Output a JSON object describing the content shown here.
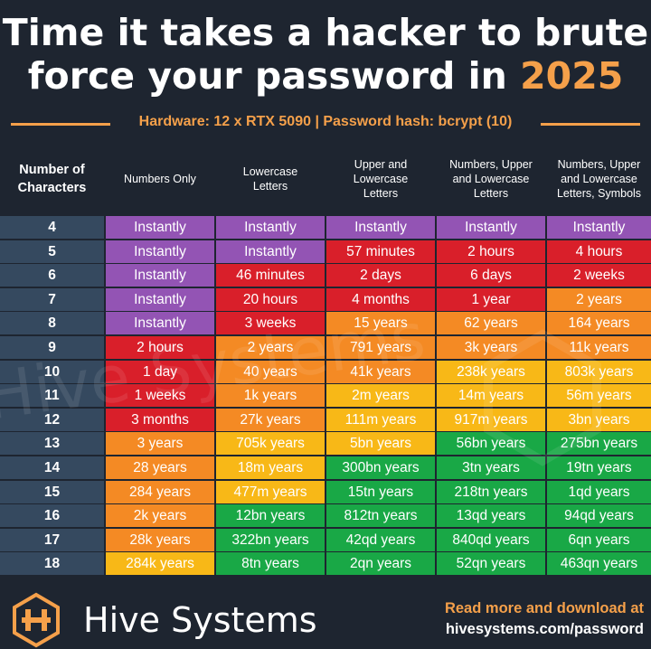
{
  "title": {
    "line1": "Time it takes a hacker to brute",
    "line2_prefix": "force your password in ",
    "year": "2025"
  },
  "subtitle": "Hardware: 12 x RTX 5090 | Password hash: bcrypt (10)",
  "headers": [
    "Number of\nCharacters",
    "Numbers Only",
    "Lowercase\nLetters",
    "Upper and\nLowercase\nLetters",
    "Numbers, Upper\nand Lowercase\nLetters",
    "Numbers, Upper\nand Lowercase\nLetters, Symbols"
  ],
  "colors": {
    "purple": "#9354b4",
    "red": "#d91f2a",
    "orange": "#f48a24",
    "yellow": "#f8b817",
    "green": "#19a846",
    "num_col": "#35495f",
    "accent": "#f5a04a"
  },
  "chart_data": {
    "type": "table",
    "title": "Time it takes a hacker to brute force your password in 2025",
    "columns": [
      "Number of Characters",
      "Numbers Only",
      "Lowercase Letters",
      "Upper and Lowercase Letters",
      "Numbers, Upper and Lowercase Letters",
      "Numbers, Upper and Lowercase Letters, Symbols"
    ],
    "rows": [
      {
        "n": "4",
        "cells": [
          [
            "Instantly",
            "purple"
          ],
          [
            "Instantly",
            "purple"
          ],
          [
            "Instantly",
            "purple"
          ],
          [
            "Instantly",
            "purple"
          ],
          [
            "Instantly",
            "purple"
          ]
        ]
      },
      {
        "n": "5",
        "cells": [
          [
            "Instantly",
            "purple"
          ],
          [
            "Instantly",
            "purple"
          ],
          [
            "57 minutes",
            "red"
          ],
          [
            "2 hours",
            "red"
          ],
          [
            "4 hours",
            "red"
          ]
        ]
      },
      {
        "n": "6",
        "cells": [
          [
            "Instantly",
            "purple"
          ],
          [
            "46 minutes",
            "red"
          ],
          [
            "2 days",
            "red"
          ],
          [
            "6 days",
            "red"
          ],
          [
            "2 weeks",
            "red"
          ]
        ]
      },
      {
        "n": "7",
        "cells": [
          [
            "Instantly",
            "purple"
          ],
          [
            "20 hours",
            "red"
          ],
          [
            "4 months",
            "red"
          ],
          [
            "1 year",
            "red"
          ],
          [
            "2 years",
            "orange"
          ]
        ]
      },
      {
        "n": "8",
        "cells": [
          [
            "Instantly",
            "purple"
          ],
          [
            "3 weeks",
            "red"
          ],
          [
            "15 years",
            "orange"
          ],
          [
            "62 years",
            "orange"
          ],
          [
            "164 years",
            "orange"
          ]
        ]
      },
      {
        "n": "9",
        "cells": [
          [
            "2 hours",
            "red"
          ],
          [
            "2 years",
            "orange"
          ],
          [
            "791 years",
            "orange"
          ],
          [
            "3k years",
            "orange"
          ],
          [
            "11k years",
            "orange"
          ]
        ]
      },
      {
        "n": "10",
        "cells": [
          [
            "1 day",
            "red"
          ],
          [
            "40 years",
            "orange"
          ],
          [
            "41k years",
            "orange"
          ],
          [
            "238k years",
            "yellow"
          ],
          [
            "803k years",
            "yellow"
          ]
        ]
      },
      {
        "n": "11",
        "cells": [
          [
            "1 weeks",
            "red"
          ],
          [
            "1k years",
            "orange"
          ],
          [
            "2m years",
            "yellow"
          ],
          [
            "14m years",
            "yellow"
          ],
          [
            "56m years",
            "yellow"
          ]
        ]
      },
      {
        "n": "12",
        "cells": [
          [
            "3 months",
            "red"
          ],
          [
            "27k years",
            "orange"
          ],
          [
            "111m years",
            "yellow"
          ],
          [
            "917m years",
            "yellow"
          ],
          [
            "3bn years",
            "yellow"
          ]
        ]
      },
      {
        "n": "13",
        "cells": [
          [
            "3 years",
            "orange"
          ],
          [
            "705k years",
            "yellow"
          ],
          [
            "5bn years",
            "yellow"
          ],
          [
            "56bn years",
            "green"
          ],
          [
            "275bn years",
            "green"
          ]
        ]
      },
      {
        "n": "14",
        "cells": [
          [
            "28 years",
            "orange"
          ],
          [
            "18m years",
            "yellow"
          ],
          [
            "300bn years",
            "green"
          ],
          [
            "3tn years",
            "green"
          ],
          [
            "19tn years",
            "green"
          ]
        ]
      },
      {
        "n": "15",
        "cells": [
          [
            "284 years",
            "orange"
          ],
          [
            "477m years",
            "yellow"
          ],
          [
            "15tn years",
            "green"
          ],
          [
            "218tn years",
            "green"
          ],
          [
            "1qd years",
            "green"
          ]
        ]
      },
      {
        "n": "16",
        "cells": [
          [
            "2k years",
            "orange"
          ],
          [
            "12bn years",
            "green"
          ],
          [
            "812tn years",
            "green"
          ],
          [
            "13qd years",
            "green"
          ],
          [
            "94qd years",
            "green"
          ]
        ]
      },
      {
        "n": "17",
        "cells": [
          [
            "28k years",
            "orange"
          ],
          [
            "322bn years",
            "green"
          ],
          [
            "42qd years",
            "green"
          ],
          [
            "840qd years",
            "green"
          ],
          [
            "6qn years",
            "green"
          ]
        ]
      },
      {
        "n": "18",
        "cells": [
          [
            "284k years",
            "yellow"
          ],
          [
            "8tn years",
            "green"
          ],
          [
            "2qn years",
            "green"
          ],
          [
            "52qn years",
            "green"
          ],
          [
            "463qn years",
            "green"
          ]
        ]
      }
    ]
  },
  "footer": {
    "brand": "Hive Systems",
    "read_more": "Read more and download at",
    "url": "hivesystems.com/password",
    "logo_icon": "hive-logo-icon",
    "watermark": "Hive Systems"
  }
}
